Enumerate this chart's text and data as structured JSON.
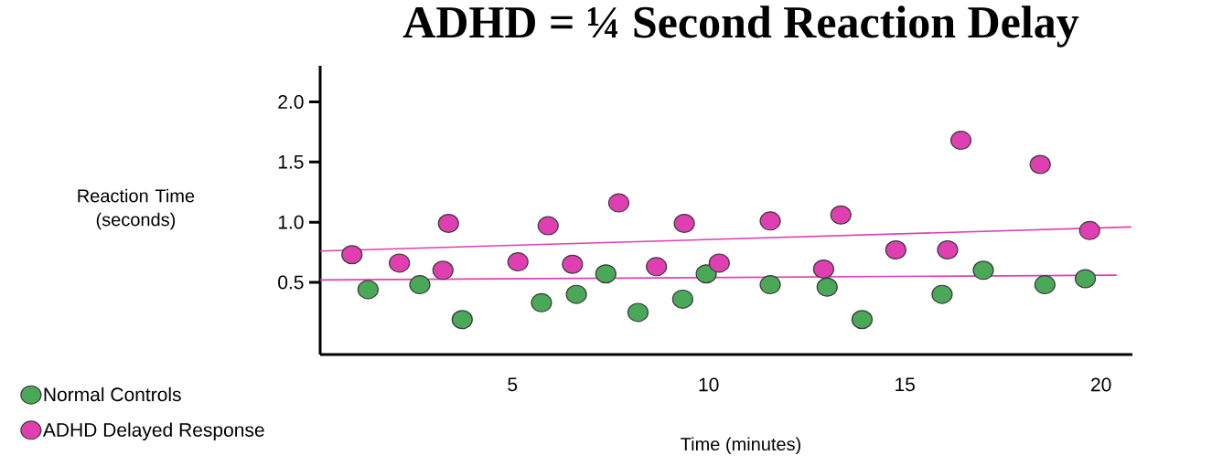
{
  "chart_data": {
    "type": "scatter",
    "title": "ADHD = ¼ Second Reaction Delay",
    "xlabel": "Time (minutes)",
    "ylabel": "Reaction Time (seconds)",
    "xlim": [
      0.1,
      20.8
    ],
    "ylim": [
      -0.1,
      2.3
    ],
    "xticks": [
      5,
      10,
      15,
      20
    ],
    "yticks": [
      0.5,
      {
        "value": 1,
        "label": "1.0"
      },
      1.5,
      {
        "value": 2,
        "label": "2.0"
      }
    ],
    "marker": "circle",
    "legend": "bottom left",
    "series": [
      {
        "name": "Normal Controls",
        "color": "#4aa858",
        "x": [
          1.32,
          2.64,
          3.72,
          5.74,
          6.63,
          7.38,
          8.2,
          9.34,
          9.94,
          11.57,
          13.02,
          13.91,
          15.95,
          17.0,
          18.57,
          19.6
        ],
        "values": [
          0.44,
          0.48,
          0.19,
          0.33,
          0.4,
          0.57,
          0.25,
          0.36,
          0.57,
          0.48,
          0.46,
          0.19,
          0.4,
          0.6,
          0.48,
          0.53
        ]
      },
      {
        "name": "ADHD Delayed Response",
        "color": "#e03fb2",
        "x": [
          0.91,
          2.12,
          3.37,
          3.23,
          5.14,
          5.91,
          6.53,
          7.71,
          8.67,
          9.38,
          10.27,
          11.57,
          13.37,
          12.93,
          14.77,
          16.09,
          16.43,
          18.45,
          19.71
        ],
        "values": [
          0.73,
          0.66,
          0.99,
          0.6,
          0.67,
          0.97,
          0.65,
          1.16,
          0.63,
          0.99,
          0.66,
          1.01,
          1.06,
          0.61,
          0.77,
          0.77,
          1.68,
          1.48,
          0.93
        ]
      },
      {
        "type": "line",
        "marker": "none",
        "color": "#e03fb2",
        "x": [
          0.1,
          20.77
        ],
        "values": [
          0.76,
          0.96
        ]
      },
      {
        "type": "line",
        "marker": "none",
        "color": "#e03fb2",
        "x": [
          0.1,
          20.4
        ],
        "values": [
          0.52,
          0.56
        ]
      }
    ]
  }
}
